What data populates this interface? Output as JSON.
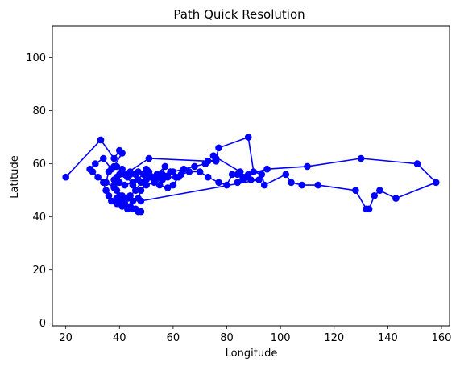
{
  "chart_data": {
    "type": "line",
    "title": "Path Quick Resolution",
    "xlabel": "Longitude",
    "ylabel": "Latitude",
    "xlim": [
      15,
      163
    ],
    "ylim": [
      -1,
      112
    ],
    "xticks": [
      20,
      40,
      60,
      80,
      100,
      120,
      140,
      160
    ],
    "yticks": [
      0,
      20,
      40,
      60,
      80,
      100
    ],
    "grid": false,
    "legend": "none",
    "series": [
      {
        "color": "#0000ff",
        "marker": "circle",
        "points": [
          [
            20,
            55
          ],
          [
            33,
            69
          ],
          [
            38,
            62
          ],
          [
            40,
            65
          ],
          [
            41,
            64
          ],
          [
            38,
            59
          ],
          [
            36,
            57
          ],
          [
            35,
            53
          ],
          [
            38,
            51
          ],
          [
            40,
            56
          ],
          [
            43,
            55
          ],
          [
            45,
            52
          ],
          [
            47,
            54
          ],
          [
            50,
            58
          ],
          [
            52,
            55
          ],
          [
            54,
            56
          ],
          [
            57,
            59
          ],
          [
            55,
            55
          ],
          [
            59,
            57
          ],
          [
            62,
            55
          ],
          [
            60,
            52
          ],
          [
            58,
            51
          ],
          [
            55,
            52
          ],
          [
            53,
            54
          ],
          [
            50,
            54
          ],
          [
            48,
            53
          ],
          [
            46,
            50
          ],
          [
            44,
            48
          ],
          [
            42,
            47
          ],
          [
            40,
            48
          ],
          [
            39,
            45
          ],
          [
            41,
            44
          ],
          [
            43,
            43
          ],
          [
            45,
            43
          ],
          [
            47,
            42
          ],
          [
            48,
            42
          ],
          [
            46,
            43
          ],
          [
            44,
            44
          ],
          [
            42,
            45
          ],
          [
            40,
            46
          ],
          [
            39,
            50
          ],
          [
            38,
            54
          ],
          [
            41,
            57
          ],
          [
            44,
            57
          ],
          [
            47,
            57
          ],
          [
            51,
            57
          ],
          [
            54,
            55
          ],
          [
            56,
            56
          ],
          [
            60,
            57
          ],
          [
            64,
            58
          ],
          [
            68,
            59
          ],
          [
            72,
            60
          ],
          [
            76,
            62
          ],
          [
            77,
            66
          ],
          [
            88,
            70
          ],
          [
            90,
            57
          ],
          [
            93,
            56
          ],
          [
            94,
            52
          ],
          [
            102,
            56
          ],
          [
            104,
            53
          ],
          [
            108,
            52
          ],
          [
            114,
            52
          ],
          [
            128,
            50
          ],
          [
            132,
            43
          ],
          [
            133,
            43
          ],
          [
            135,
            48
          ],
          [
            137,
            50
          ],
          [
            143,
            47
          ],
          [
            158,
            53
          ],
          [
            151,
            60
          ],
          [
            130,
            62
          ],
          [
            110,
            59
          ],
          [
            95,
            58
          ],
          [
            88,
            56
          ],
          [
            86,
            55
          ],
          [
            84,
            56
          ],
          [
            82,
            56
          ],
          [
            80,
            52
          ],
          [
            77,
            53
          ],
          [
            73,
            55
          ],
          [
            70,
            57
          ],
          [
            66,
            57
          ],
          [
            63,
            56
          ],
          [
            61,
            55
          ],
          [
            58,
            55
          ],
          [
            56,
            54
          ],
          [
            53,
            53
          ],
          [
            50,
            52
          ],
          [
            48,
            50
          ],
          [
            47,
            47
          ],
          [
            45,
            46
          ],
          [
            43,
            47
          ],
          [
            41,
            48
          ],
          [
            39,
            47
          ],
          [
            37,
            46
          ],
          [
            36,
            48
          ],
          [
            35,
            50
          ],
          [
            34,
            53
          ],
          [
            32,
            55
          ],
          [
            30,
            57
          ],
          [
            29,
            58
          ],
          [
            31,
            60
          ],
          [
            34,
            62
          ],
          [
            37,
            58
          ],
          [
            39,
            59
          ],
          [
            41,
            58
          ],
          [
            44,
            56
          ],
          [
            46,
            56
          ],
          [
            49,
            56
          ],
          [
            51,
            55
          ],
          [
            45,
            53
          ],
          [
            42,
            52
          ],
          [
            40,
            53
          ],
          [
            38,
            52
          ],
          [
            39,
            55
          ],
          [
            42,
            56
          ],
          [
            51,
            62
          ],
          [
            73,
            61
          ],
          [
            76,
            61
          ],
          [
            75,
            63
          ],
          [
            85,
            57
          ],
          [
            87,
            55
          ],
          [
            84,
            53
          ],
          [
            86,
            54
          ],
          [
            89,
            54
          ],
          [
            92,
            54
          ],
          [
            48,
            46
          ]
        ]
      }
    ]
  }
}
